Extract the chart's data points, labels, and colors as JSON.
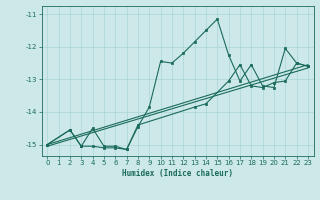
{
  "xlabel": "Humidex (Indice chaleur)",
  "xlim": [
    -0.5,
    23.5
  ],
  "ylim": [
    -15.35,
    -10.75
  ],
  "yticks": [
    -15,
    -14,
    -13,
    -12,
    -11
  ],
  "xticks": [
    0,
    1,
    2,
    3,
    4,
    5,
    6,
    7,
    8,
    9,
    10,
    11,
    12,
    13,
    14,
    15,
    16,
    17,
    18,
    19,
    20,
    21,
    22,
    23
  ],
  "bg_color": "#cce8e8",
  "line_color": "#1a6b5a",
  "grid_color": "#aad4d4",
  "line1_x": [
    0,
    2,
    3,
    4,
    5,
    6,
    7,
    8,
    9,
    10,
    11,
    12,
    13,
    14,
    15,
    16,
    17,
    18,
    19,
    20,
    21,
    22,
    23
  ],
  "line1_y": [
    -15.0,
    -14.55,
    -15.05,
    -15.05,
    -15.1,
    -15.1,
    -15.15,
    -14.45,
    -13.85,
    -12.45,
    -12.5,
    -12.2,
    -11.85,
    -11.5,
    -11.15,
    -12.25,
    -13.05,
    -12.55,
    -13.2,
    -13.25,
    -12.05,
    -12.5,
    -12.6
  ],
  "line2_x": [
    0,
    2,
    3,
    4,
    5,
    6,
    7,
    8,
    13,
    14,
    16,
    17,
    18,
    19,
    20,
    21,
    22,
    23
  ],
  "line2_y": [
    -15.0,
    -14.55,
    -15.05,
    -14.5,
    -15.05,
    -15.05,
    -15.15,
    -14.4,
    -13.85,
    -13.75,
    -13.05,
    -12.55,
    -13.2,
    -13.25,
    -13.1,
    -13.05,
    -12.5,
    -12.6
  ],
  "line3_x": [
    0,
    23
  ],
  "line3_y": [
    -15.0,
    -12.55
  ],
  "line4_x": [
    0,
    23
  ],
  "line4_y": [
    -15.05,
    -12.65
  ]
}
